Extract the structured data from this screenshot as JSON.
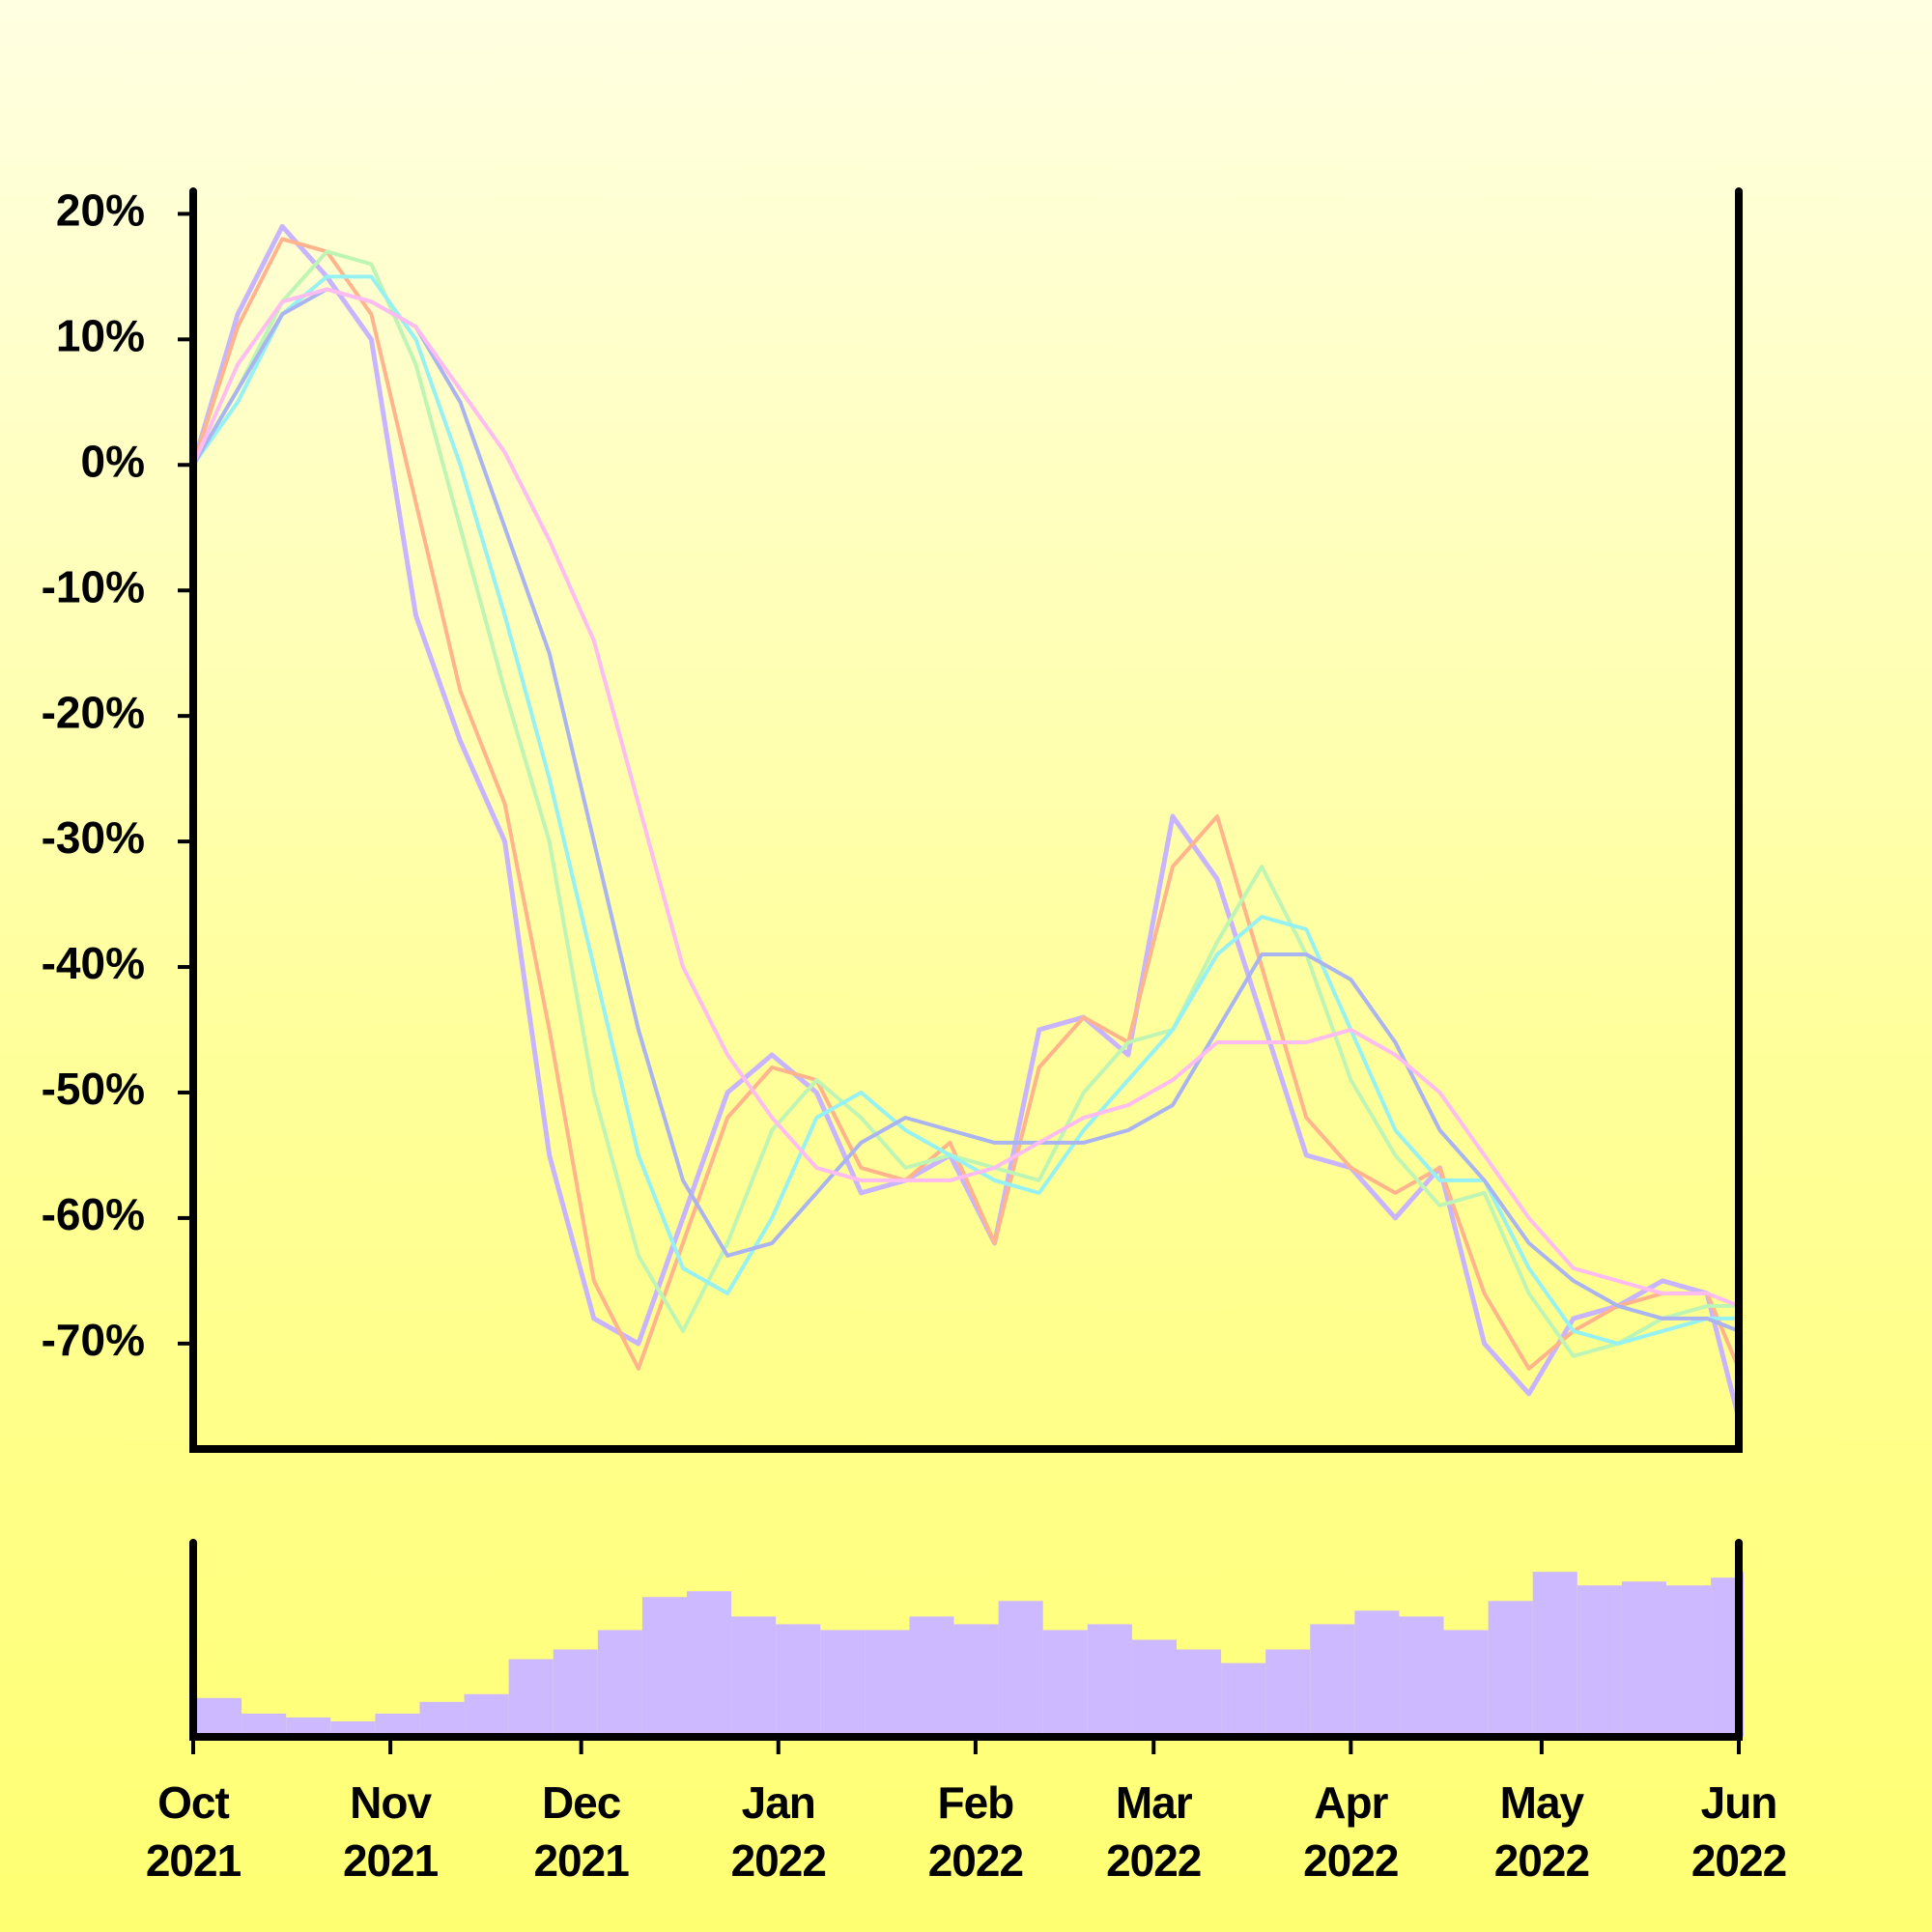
{
  "chart_data": [
    {
      "type": "line",
      "x": [
        0,
        7,
        14,
        21,
        28,
        35,
        42,
        49,
        56,
        63,
        70,
        77,
        84,
        91,
        98,
        105,
        112,
        119,
        126,
        133,
        140,
        147,
        154,
        161,
        168,
        175,
        182,
        189,
        196,
        203,
        210,
        217,
        224,
        231,
        238,
        243
      ],
      "xlim": [
        0,
        243
      ],
      "ylim": [
        -78.4,
        21.8
      ],
      "yticks": [
        {
          "value": 20,
          "label": "20%"
        },
        {
          "value": 10,
          "label": "10%"
        },
        {
          "value": 0,
          "label": "0%"
        },
        {
          "value": -10,
          "label": "-10%"
        },
        {
          "value": -20,
          "label": "-20%"
        },
        {
          "value": -30,
          "label": "-30%"
        },
        {
          "value": -40,
          "label": "-40%"
        },
        {
          "value": -50,
          "label": "-50%"
        },
        {
          "value": -60,
          "label": "-60%"
        },
        {
          "value": -70,
          "label": "-70%"
        }
      ],
      "series": [
        {
          "color": "#c8b4ff",
          "values": [
            0,
            12,
            19,
            15,
            10,
            -12,
            -22,
            -30,
            -55,
            -68,
            -70,
            -60,
            -50,
            -47,
            -50,
            -58,
            -57,
            -55,
            -62,
            -45,
            -44,
            -47,
            -28,
            -33,
            -44,
            -55,
            -56,
            -60,
            -56,
            -70,
            -74,
            -68,
            -67,
            -65,
            -66,
            -76
          ]
        },
        {
          "color": "#ffb48c",
          "values": [
            0,
            11,
            18,
            17,
            12,
            -3,
            -18,
            -27,
            -45,
            -65,
            -72,
            -62,
            -52,
            -48,
            -49,
            -56,
            -57,
            -54,
            -62,
            -48,
            -44,
            -46,
            -32,
            -28,
            -40,
            -52,
            -56,
            -58,
            -56,
            -66,
            -72,
            -69,
            -67,
            -66,
            -66,
            -72
          ]
        },
        {
          "color": "#bef5b4",
          "values": [
            0,
            6,
            13,
            17,
            16,
            8,
            -5,
            -18,
            -30,
            -50,
            -63,
            -69,
            -62,
            -53,
            -49,
            -52,
            -56,
            -55,
            -56,
            -57,
            -50,
            -46,
            -45,
            -38,
            -32,
            -39,
            -49,
            -55,
            -59,
            -58,
            -66,
            -71,
            -70,
            -68,
            -67,
            -67
          ]
        },
        {
          "color": "#96f2f2",
          "values": [
            0,
            5,
            12,
            15,
            15,
            10,
            0,
            -12,
            -25,
            -40,
            -55,
            -64,
            -66,
            -60,
            -52,
            -50,
            -53,
            -55,
            -57,
            -58,
            -53,
            -49,
            -45,
            -39,
            -36,
            -37,
            -45,
            -53,
            -57,
            -57,
            -64,
            -69,
            -70,
            -69,
            -68,
            -68
          ]
        },
        {
          "color": "#aab4f0",
          "values": [
            0,
            6,
            12,
            14,
            13,
            11,
            5,
            -5,
            -15,
            -30,
            -45,
            -57,
            -63,
            -62,
            -58,
            -54,
            -52,
            -53,
            -54,
            -54,
            -54,
            -53,
            -51,
            -45,
            -39,
            -39,
            -41,
            -46,
            -53,
            -57,
            -62,
            -65,
            -67,
            -68,
            -68,
            -69
          ]
        },
        {
          "color": "#ffbcf0",
          "values": [
            0,
            8,
            13,
            14,
            13,
            11,
            6,
            1,
            -6,
            -14,
            -27,
            -40,
            -47,
            -52,
            -56,
            -57,
            -57,
            -57,
            -56,
            -54,
            -52,
            -51,
            -49,
            -46,
            -46,
            -46,
            -45,
            -47,
            -50,
            -55,
            -60,
            -64,
            -65,
            -66,
            -66,
            -67
          ]
        }
      ]
    },
    {
      "type": "bar",
      "color": "#cdb9ff",
      "x": [
        0,
        7,
        14,
        21,
        28,
        35,
        42,
        49,
        56,
        63,
        70,
        77,
        84,
        91,
        98,
        105,
        112,
        119,
        126,
        133,
        140,
        147,
        154,
        161,
        168,
        175,
        182,
        189,
        196,
        203,
        210,
        217,
        224,
        231,
        238,
        243
      ],
      "values": [
        20,
        12,
        10,
        8,
        12,
        18,
        22,
        40,
        45,
        55,
        72,
        75,
        62,
        58,
        55,
        55,
        62,
        58,
        70,
        55,
        58,
        50,
        45,
        38,
        45,
        58,
        65,
        62,
        55,
        70,
        85,
        78,
        80,
        78,
        82,
        85
      ],
      "xlim": [
        0,
        243
      ],
      "ylim": [
        0,
        100
      ],
      "xticks": [
        {
          "value": 0,
          "label": "Oct 2021"
        },
        {
          "value": 31,
          "label": "Nov 2021"
        },
        {
          "value": 61,
          "label": "Dec 2021"
        },
        {
          "value": 92,
          "label": "Jan 2022"
        },
        {
          "value": 123,
          "label": "Feb 2022"
        },
        {
          "value": 151,
          "label": "Mar 2022"
        },
        {
          "value": 182,
          "label": "Apr 2022"
        },
        {
          "value": 212,
          "label": "May 2022"
        },
        {
          "value": 243,
          "label": "Jun 2022"
        }
      ]
    }
  ]
}
